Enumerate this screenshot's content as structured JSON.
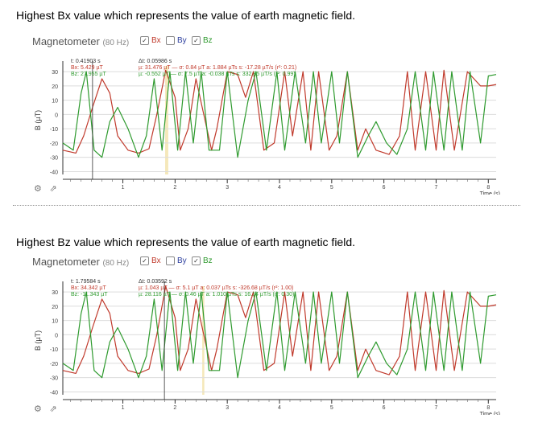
{
  "headings": {
    "first": "Highest Bx value which represents the value of earth magnetic field.",
    "second": "Highest Bz value which represents the value of earth magnetic field."
  },
  "colors": {
    "bx": "#c0392b",
    "by": "#2c3e9e",
    "bz": "#2e9a2e",
    "grid": "#dcdcdc",
    "highlight": "#f3e2a9"
  },
  "panels": [
    {
      "title": "Magnetometer",
      "rate": "(80 Hz)",
      "legend": {
        "bx": "Bx",
        "by": "By",
        "bz": "Bz",
        "bx_checked": "✓",
        "by_checked": "",
        "bz_checked": "✓"
      },
      "ylabel": "B (µT)",
      "xlabel": "Time (s)",
      "cursor": {
        "t": 0.41903,
        "t_label": "t: 0.41903 s",
        "bx_label": "Bx: 5.429 µT",
        "bz_label": "Bz: 27.955 µT"
      },
      "interval": {
        "start": 1.81,
        "end": 1.87,
        "dt_label": "Δt: 0.05986 s",
        "bx_stats": "µ: 31.476 µT — σ: 0.84 µT   a: 1.884 µTs   s: -17.28 µT/s (r²: 0.21)",
        "bz_stats": "µ: -0.552 µT — σ: 7.5 µT   a: -0.038 µTs   s: 332.85 µT/s (r²: 0.99)"
      }
    },
    {
      "title": "Magnetometer",
      "rate": "(80 Hz)",
      "legend": {
        "bx": "Bx",
        "by": "By",
        "bz": "Bz",
        "bx_checked": "✓",
        "by_checked": "",
        "bz_checked": "✓"
      },
      "ylabel": "B (µT)",
      "xlabel": "Time (s)",
      "cursor": {
        "t": 1.79584,
        "t_label": "t: 1.79584 s",
        "bx_label": "Bx: 34.342 µT",
        "bz_label": "Bz: -11.343 µT"
      },
      "interval": {
        "start": 2.52,
        "end": 2.56,
        "dt_label": "Δt: 0.03592 s",
        "bx_stats": "µ: 1.043 µT — σ: 5.1 µT   a: 0.037 µTs   s: -326.68 µT/s (r²: 1.00)",
        "bz_stats": "µ: 28.116 µT — σ: 0.46 µT   a: 1.010 µTs   s: 16.14 µT/s (r²: 0.30)"
      }
    }
  ],
  "chart_data": [
    {
      "type": "line",
      "title": "Magnetometer",
      "xlabel": "Time (s)",
      "ylabel": "B (µT)",
      "xlim": [
        -0.15,
        8.15
      ],
      "ylim": [
        -42,
        34
      ],
      "x_ticks": [
        1,
        2,
        3,
        4,
        5,
        6,
        7,
        8
      ],
      "y_ticks": [
        30,
        20,
        10,
        0,
        -10,
        -20,
        -30,
        -40
      ],
      "series": [
        {
          "name": "Bx",
          "x": [
            -0.15,
            0.1,
            0.25,
            0.42,
            0.6,
            0.75,
            0.9,
            1.1,
            1.3,
            1.5,
            1.65,
            1.82,
            2.0,
            2.1,
            2.25,
            2.4,
            2.55,
            2.7,
            2.8,
            3.0,
            3.2,
            3.35,
            3.5,
            3.7,
            3.9,
            4.1,
            4.25,
            4.45,
            4.6,
            4.75,
            4.95,
            5.1,
            5.3,
            5.5,
            5.65,
            5.85,
            6.1,
            6.3,
            6.45,
            6.6,
            6.8,
            7.0,
            7.15,
            7.35,
            7.6,
            7.85,
            8.0,
            8.15
          ],
          "values": [
            -25,
            -27,
            -15,
            5,
            25,
            15,
            -15,
            -25,
            -27,
            -24,
            0,
            31,
            12,
            -25,
            -10,
            25,
            0,
            -25,
            -10,
            30,
            28,
            12,
            30,
            -25,
            -20,
            30,
            -15,
            30,
            -25,
            30,
            -25,
            -15,
            30,
            -25,
            -10,
            -25,
            -28,
            -15,
            30,
            -25,
            30,
            -25,
            31,
            -25,
            30,
            20,
            20,
            21
          ]
        },
        {
          "name": "Bz",
          "x": [
            -0.15,
            0.05,
            0.2,
            0.3,
            0.45,
            0.6,
            0.75,
            0.9,
            1.1,
            1.3,
            1.45,
            1.6,
            1.75,
            1.9,
            2.05,
            2.2,
            2.35,
            2.5,
            2.65,
            2.85,
            3.0,
            3.2,
            3.4,
            3.55,
            3.75,
            3.95,
            4.1,
            4.3,
            4.5,
            4.65,
            4.8,
            5.0,
            5.15,
            5.3,
            5.5,
            5.7,
            5.85,
            6.05,
            6.25,
            6.45,
            6.6,
            6.8,
            6.95,
            7.15,
            7.3,
            7.5,
            7.65,
            7.85,
            8.0,
            8.15
          ],
          "values": [
            -20,
            -25,
            15,
            30,
            -25,
            -30,
            -5,
            5,
            -10,
            -30,
            -15,
            25,
            -25,
            30,
            -25,
            30,
            -20,
            30,
            -25,
            -25,
            30,
            -30,
            10,
            30,
            -25,
            30,
            -25,
            30,
            -20,
            30,
            -20,
            30,
            -20,
            30,
            -30,
            -15,
            -5,
            -20,
            -28,
            -10,
            30,
            -25,
            30,
            -25,
            30,
            -25,
            30,
            -20,
            27,
            28
          ]
        }
      ]
    },
    {
      "type": "line",
      "title": "Magnetometer",
      "xlabel": "Time (s)",
      "ylabel": "B (µT)",
      "xlim": [
        -0.15,
        8.15
      ],
      "ylim": [
        -42,
        34
      ],
      "x_ticks": [
        1,
        2,
        3,
        4,
        5,
        6,
        7,
        8
      ],
      "y_ticks": [
        30,
        20,
        10,
        0,
        -10,
        -20,
        -30,
        -40
      ],
      "series": [
        {
          "name": "Bx",
          "x": [
            -0.15,
            0.1,
            0.25,
            0.42,
            0.6,
            0.75,
            0.9,
            1.1,
            1.3,
            1.5,
            1.65,
            1.82,
            2.0,
            2.1,
            2.25,
            2.4,
            2.55,
            2.7,
            2.8,
            3.0,
            3.2,
            3.35,
            3.5,
            3.7,
            3.9,
            4.1,
            4.25,
            4.45,
            4.6,
            4.75,
            4.95,
            5.1,
            5.3,
            5.5,
            5.65,
            5.85,
            6.1,
            6.3,
            6.45,
            6.6,
            6.8,
            7.0,
            7.15,
            7.35,
            7.6,
            7.85,
            8.0,
            8.15
          ],
          "values": [
            -25,
            -27,
            -15,
            5,
            25,
            15,
            -15,
            -25,
            -27,
            -24,
            0,
            34,
            12,
            -25,
            -10,
            25,
            0,
            -25,
            -10,
            30,
            28,
            12,
            30,
            -25,
            -20,
            30,
            -15,
            30,
            -25,
            30,
            -25,
            -15,
            30,
            -25,
            -10,
            -25,
            -28,
            -15,
            30,
            -25,
            30,
            -25,
            31,
            -25,
            30,
            20,
            20,
            21
          ]
        },
        {
          "name": "Bz",
          "x": [
            -0.15,
            0.05,
            0.2,
            0.3,
            0.45,
            0.6,
            0.75,
            0.9,
            1.1,
            1.3,
            1.45,
            1.6,
            1.75,
            1.9,
            2.05,
            2.2,
            2.35,
            2.5,
            2.65,
            2.85,
            3.0,
            3.2,
            3.4,
            3.55,
            3.75,
            3.95,
            4.1,
            4.3,
            4.5,
            4.65,
            4.8,
            5.0,
            5.15,
            5.3,
            5.5,
            5.7,
            5.85,
            6.05,
            6.25,
            6.45,
            6.6,
            6.8,
            6.95,
            7.15,
            7.3,
            7.5,
            7.65,
            7.85,
            8.0,
            8.15
          ],
          "values": [
            -20,
            -25,
            15,
            30,
            -25,
            -30,
            -5,
            5,
            -10,
            -30,
            -15,
            25,
            -25,
            30,
            -25,
            30,
            -20,
            30,
            -25,
            -25,
            30,
            -30,
            10,
            30,
            -25,
            30,
            -25,
            30,
            -20,
            30,
            -20,
            30,
            -20,
            30,
            -30,
            -15,
            -5,
            -20,
            -28,
            -10,
            30,
            -25,
            30,
            -25,
            30,
            -25,
            30,
            -20,
            27,
            28
          ]
        }
      ]
    }
  ]
}
